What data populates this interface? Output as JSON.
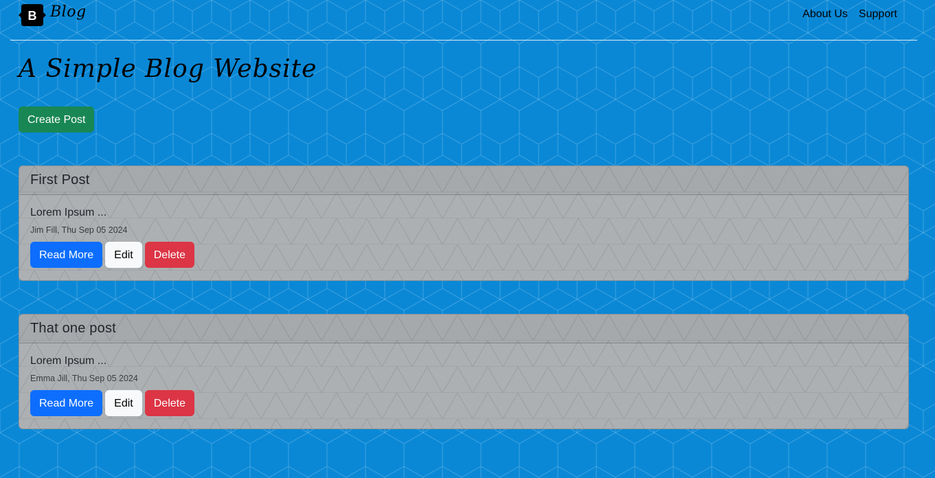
{
  "navbar": {
    "brand_letter": "B",
    "brand_text": "Blog",
    "links": [
      {
        "label": "About Us"
      },
      {
        "label": "Support"
      }
    ]
  },
  "hero": {
    "title": "A Simple Blog Website",
    "create_button": "Create Post"
  },
  "posts": [
    {
      "title": "First Post",
      "excerpt": "Lorem Ipsum ...",
      "meta": "Jim Fill, Thu Sep 05 2024",
      "read_more": "Read More",
      "edit": "Edit",
      "delete": "Delete"
    },
    {
      "title": "That one post",
      "excerpt": "Lorem Ipsum ...",
      "meta": "Emma Jill, Thu Sep 05 2024",
      "read_more": "Read More",
      "edit": "Edit",
      "delete": "Delete"
    }
  ],
  "colors": {
    "background": "#0a88d6",
    "card": "#b2b2b2",
    "create": "#198754",
    "primary": "#0d6efd",
    "danger": "#dc3545",
    "light": "#f8f9fa"
  }
}
